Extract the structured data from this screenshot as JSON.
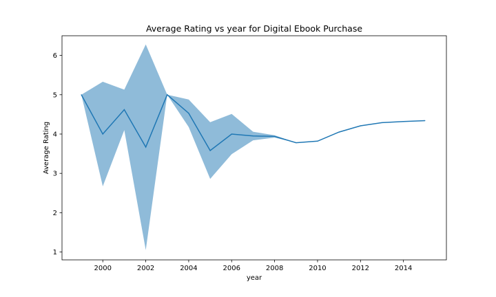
{
  "chart_data": {
    "type": "line",
    "title": "Average Rating vs year for Digital Ebook Purchase",
    "xlabel": "year",
    "ylabel": "Average Rating",
    "xlim": [
      1998.1,
      2016.0
    ],
    "ylim": [
      0.8,
      6.5
    ],
    "xticks": [
      2000,
      2002,
      2004,
      2006,
      2008,
      2010,
      2012,
      2014
    ],
    "yticks": [
      1,
      2,
      3,
      4,
      5,
      6
    ],
    "grid": false,
    "colors": {
      "line": "#1f77b4",
      "band": "#1f77b4"
    },
    "x": [
      1999,
      2000,
      2001,
      2002,
      2003,
      2004,
      2005,
      2006,
      2007,
      2008,
      2009,
      2010,
      2011,
      2012,
      2013,
      2014,
      2015
    ],
    "series": [
      {
        "values": [
          5.0,
          4.0,
          4.62,
          3.67,
          5.0,
          4.53,
          3.58,
          4.0,
          3.95,
          3.94,
          3.78,
          3.82,
          4.05,
          4.21,
          4.29,
          4.32,
          4.34
        ],
        "upper": [
          5.0,
          5.33,
          5.13,
          6.28,
          5.0,
          4.88,
          4.3,
          4.51,
          4.06,
          3.97,
          3.78,
          3.82,
          4.05,
          4.21,
          4.29,
          4.32,
          4.34
        ],
        "lower": [
          5.0,
          2.67,
          4.1,
          1.05,
          5.0,
          4.18,
          2.86,
          3.49,
          3.84,
          3.91,
          3.78,
          3.82,
          4.05,
          4.21,
          4.29,
          4.32,
          4.34
        ]
      }
    ]
  }
}
